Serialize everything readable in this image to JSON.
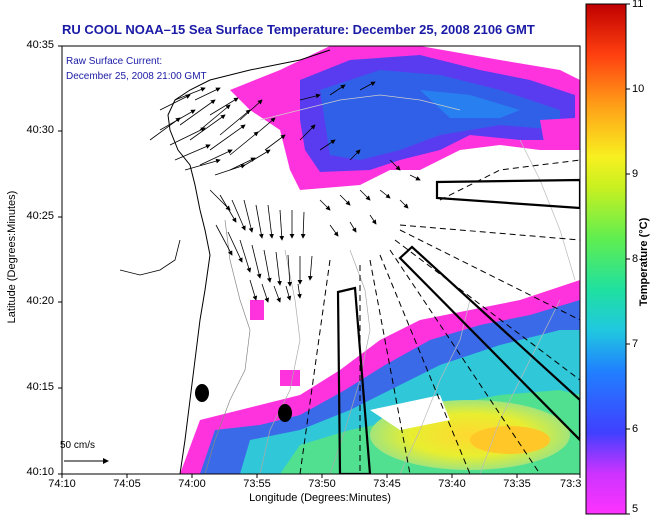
{
  "title": "RU COOL  NOAA–15  Sea Surface Temperature:  December 25, 2008 2106 GMT",
  "annotation": {
    "line1": "Raw Surface Current:",
    "line2": "December 25, 2008 21:00 GMT"
  },
  "x_axis": {
    "label": "Longitude (Degrees:Minutes)",
    "ticks": [
      "74:10",
      "74:05",
      "74:00",
      "73:55",
      "73:50",
      "73:45",
      "73:40",
      "73:35",
      "73:3"
    ]
  },
  "y_axis": {
    "label": "Latitude (Degrees:Minutes)",
    "ticks": [
      "40:35",
      "40:30",
      "40:25",
      "40:20",
      "40:15",
      "40:10"
    ]
  },
  "colorbar": {
    "label": "Temperature (°C)",
    "ticks": [
      "11",
      "10",
      "9",
      "8",
      "7",
      "6",
      "5"
    ],
    "range": [
      5,
      11
    ]
  },
  "scale_bar": {
    "label": "50 cm/s"
  },
  "colors": {
    "title": "#1a1aa6",
    "warm_water": "#f0e628",
    "cool_water": "#2060e0",
    "coldest": "#ff33dd"
  }
}
